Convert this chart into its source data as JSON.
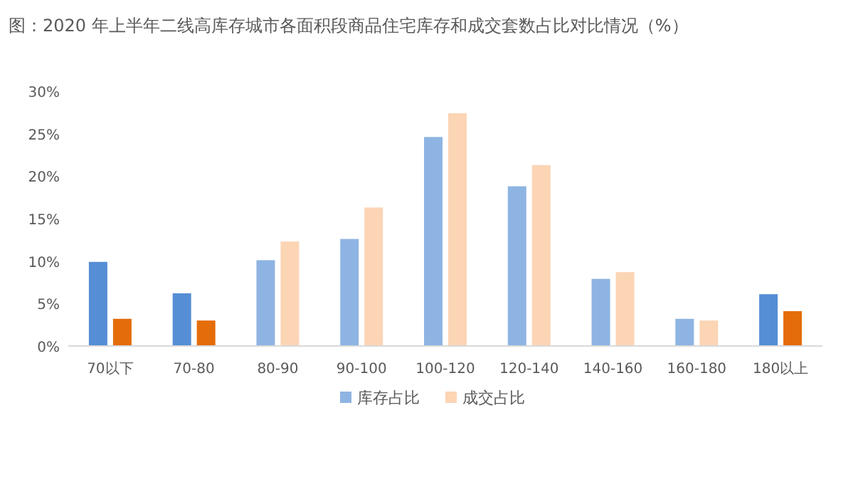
{
  "chart_data": {
    "type": "bar",
    "title": "图：2020 年上半年二线高库存城市各面积段商品住宅库存和成交套数占比对比情况（%）",
    "categories": [
      "70以下",
      "70-80",
      "80-90",
      "90-100",
      "100-120",
      "120-140",
      "140-160",
      "160-180",
      "180以上"
    ],
    "series": [
      {
        "name": "库存占比",
        "color": "#8eb4e3",
        "colors": [
          "#558ed5",
          "#558ed5",
          "#8eb4e3",
          "#8eb4e3",
          "#8eb4e3",
          "#8eb4e3",
          "#8eb4e3",
          "#8eb4e3",
          "#558ed5"
        ],
        "values": [
          9.9,
          6.2,
          10.1,
          12.6,
          24.6,
          18.8,
          7.9,
          3.2,
          6.1
        ]
      },
      {
        "name": "成交占比",
        "color": "#fcd5b5",
        "colors": [
          "#e46c0a",
          "#e46c0a",
          "#fcd5b5",
          "#fcd5b5",
          "#fcd5b5",
          "#fcd5b5",
          "#fcd5b5",
          "#fcd5b5",
          "#e46c0a"
        ],
        "values": [
          3.2,
          3.0,
          12.3,
          16.3,
          27.4,
          21.3,
          8.7,
          3.0,
          4.1
        ]
      }
    ],
    "ylim": [
      0,
      30
    ],
    "yticks": [
      {
        "value": 0,
        "label": "0%"
      },
      {
        "value": 5,
        "label": "5%"
      },
      {
        "value": 10,
        "label": "10%"
      },
      {
        "value": 15,
        "label": "15%"
      },
      {
        "value": 20,
        "label": "20%"
      },
      {
        "value": 25,
        "label": "25%"
      },
      {
        "value": 30,
        "label": "30%"
      }
    ],
    "grid": false,
    "legend": "bottom"
  }
}
